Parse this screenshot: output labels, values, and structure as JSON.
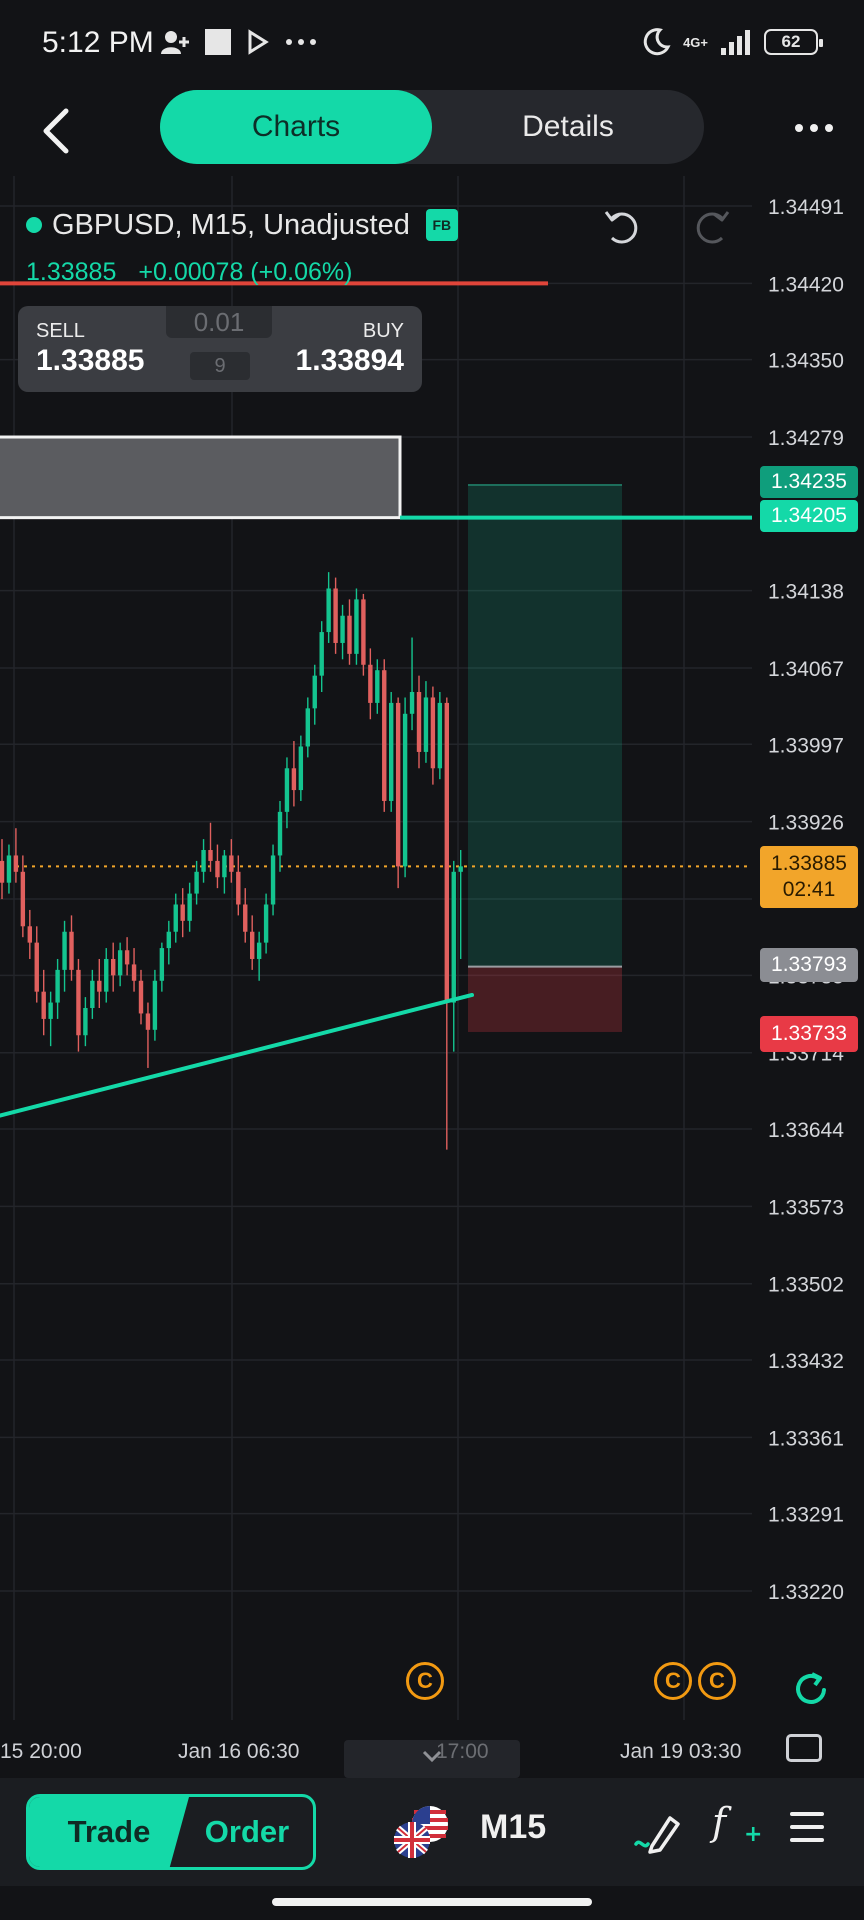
{
  "status_bar": {
    "time": "5:12 PM",
    "network": "4G+",
    "battery": "62"
  },
  "header": {
    "tabs": [
      "Charts",
      "Details"
    ],
    "active_tab": "Charts"
  },
  "chart_header": {
    "symbol": "GBPUSD, M15, Unadjusted",
    "badge": "FB",
    "last_price": "1.33885",
    "change": "+0.00078 (+0.06%)"
  },
  "trade_panel": {
    "sell_label": "SELL",
    "sell_price": "1.33885",
    "buy_label": "BUY",
    "buy_price": "1.33894",
    "lot": "0.01",
    "spread": "9"
  },
  "price_tags": {
    "take_profit": "1.34235",
    "line_level": "1.34205",
    "current_price": "1.33885",
    "countdown": "02:41",
    "entry": "1.33793",
    "stop_loss": "1.33733"
  },
  "coin_markers": [
    "C",
    "C",
    "C"
  ],
  "colors": {
    "accent": "#14d9a8",
    "up": "#14c48f",
    "down": "#e0605e",
    "current": "#f2a52a",
    "stop": "#e83a46"
  },
  "chart_data": {
    "type": "candlestick",
    "y_ticks": [
      "1.34491",
      "1.34420",
      "1.34350",
      "1.34279",
      "1.34205",
      "1.34138",
      "1.34067",
      "1.33997",
      "1.33926",
      "1.33855",
      "1.33785",
      "1.33714",
      "1.33644",
      "1.33573",
      "1.33502",
      "1.33432",
      "1.33361",
      "1.33291",
      "1.33220"
    ],
    "ylim": [
      1.3315,
      1.3453
    ],
    "x_labels": [
      "15 20:00",
      "Jan 16 06:30",
      "17:00",
      "Jan 19 03:30"
    ],
    "grid": true,
    "horizontal_lines": [
      {
        "price": 1.34205,
        "color": "#14d9a8"
      },
      {
        "price": 1.3442,
        "color": "#e0453a"
      },
      {
        "price": 1.33885,
        "color": "#f2a52a"
      }
    ],
    "position": {
      "entry": 1.33793,
      "take_profit": 1.34235,
      "stop_loss": 1.33733
    },
    "zone": {
      "top": 1.34279,
      "bottom": 1.34205
    },
    "trendline": [
      {
        "t": 0,
        "price": 1.3366
      },
      {
        "t": 78,
        "price": 1.338
      }
    ],
    "candles": [
      {
        "o": 1.3389,
        "h": 1.3391,
        "l": 1.33855,
        "c": 1.3387
      },
      {
        "o": 1.3387,
        "h": 1.33905,
        "l": 1.3386,
        "c": 1.33895
      },
      {
        "o": 1.33895,
        "h": 1.3392,
        "l": 1.3387,
        "c": 1.3388
      },
      {
        "o": 1.3388,
        "h": 1.33895,
        "l": 1.3382,
        "c": 1.3383
      },
      {
        "o": 1.3383,
        "h": 1.33845,
        "l": 1.338,
        "c": 1.33815
      },
      {
        "o": 1.33815,
        "h": 1.3383,
        "l": 1.3376,
        "c": 1.3377
      },
      {
        "o": 1.3377,
        "h": 1.3379,
        "l": 1.3373,
        "c": 1.33745
      },
      {
        "o": 1.33745,
        "h": 1.3377,
        "l": 1.3372,
        "c": 1.3376
      },
      {
        "o": 1.3376,
        "h": 1.338,
        "l": 1.33745,
        "c": 1.3379
      },
      {
        "o": 1.3379,
        "h": 1.33835,
        "l": 1.3377,
        "c": 1.33825
      },
      {
        "o": 1.33825,
        "h": 1.3384,
        "l": 1.3378,
        "c": 1.3379
      },
      {
        "o": 1.3379,
        "h": 1.338,
        "l": 1.33715,
        "c": 1.3373
      },
      {
        "o": 1.3373,
        "h": 1.33765,
        "l": 1.3372,
        "c": 1.33755
      },
      {
        "o": 1.33755,
        "h": 1.3379,
        "l": 1.33745,
        "c": 1.3378
      },
      {
        "o": 1.3378,
        "h": 1.338,
        "l": 1.33755,
        "c": 1.3377
      },
      {
        "o": 1.3377,
        "h": 1.3381,
        "l": 1.3376,
        "c": 1.338
      },
      {
        "o": 1.338,
        "h": 1.33815,
        "l": 1.3377,
        "c": 1.33785
      },
      {
        "o": 1.33785,
        "h": 1.33815,
        "l": 1.33775,
        "c": 1.33808
      },
      {
        "o": 1.33808,
        "h": 1.3382,
        "l": 1.33785,
        "c": 1.33795
      },
      {
        "o": 1.33795,
        "h": 1.3381,
        "l": 1.3377,
        "c": 1.3378
      },
      {
        "o": 1.3378,
        "h": 1.3379,
        "l": 1.3374,
        "c": 1.3375
      },
      {
        "o": 1.3375,
        "h": 1.3376,
        "l": 1.337,
        "c": 1.33735
      },
      {
        "o": 1.33735,
        "h": 1.3379,
        "l": 1.33725,
        "c": 1.3378
      },
      {
        "o": 1.3378,
        "h": 1.33815,
        "l": 1.3377,
        "c": 1.3381
      },
      {
        "o": 1.3381,
        "h": 1.33835,
        "l": 1.33795,
        "c": 1.33825
      },
      {
        "o": 1.33825,
        "h": 1.3386,
        "l": 1.33815,
        "c": 1.3385
      },
      {
        "o": 1.3385,
        "h": 1.33865,
        "l": 1.3382,
        "c": 1.33835
      },
      {
        "o": 1.33835,
        "h": 1.3387,
        "l": 1.33825,
        "c": 1.3386
      },
      {
        "o": 1.3386,
        "h": 1.3389,
        "l": 1.3385,
        "c": 1.3388
      },
      {
        "o": 1.3388,
        "h": 1.3391,
        "l": 1.3387,
        "c": 1.339
      },
      {
        "o": 1.339,
        "h": 1.33925,
        "l": 1.3388,
        "c": 1.3389
      },
      {
        "o": 1.3389,
        "h": 1.33905,
        "l": 1.33865,
        "c": 1.33875
      },
      {
        "o": 1.33875,
        "h": 1.339,
        "l": 1.3386,
        "c": 1.33895
      },
      {
        "o": 1.33895,
        "h": 1.3391,
        "l": 1.3387,
        "c": 1.3388
      },
      {
        "o": 1.3388,
        "h": 1.33895,
        "l": 1.3384,
        "c": 1.3385
      },
      {
        "o": 1.3385,
        "h": 1.33865,
        "l": 1.33815,
        "c": 1.33825
      },
      {
        "o": 1.33825,
        "h": 1.3384,
        "l": 1.3379,
        "c": 1.338
      },
      {
        "o": 1.338,
        "h": 1.33825,
        "l": 1.3378,
        "c": 1.33815
      },
      {
        "o": 1.33815,
        "h": 1.3386,
        "l": 1.33805,
        "c": 1.3385
      },
      {
        "o": 1.3385,
        "h": 1.33905,
        "l": 1.3384,
        "c": 1.33895
      },
      {
        "o": 1.33895,
        "h": 1.33945,
        "l": 1.3388,
        "c": 1.33935
      },
      {
        "o": 1.33935,
        "h": 1.33985,
        "l": 1.3392,
        "c": 1.33975
      },
      {
        "o": 1.33975,
        "h": 1.34,
        "l": 1.3394,
        "c": 1.33955
      },
      {
        "o": 1.33955,
        "h": 1.34005,
        "l": 1.33945,
        "c": 1.33995
      },
      {
        "o": 1.33995,
        "h": 1.3404,
        "l": 1.33985,
        "c": 1.3403
      },
      {
        "o": 1.3403,
        "h": 1.3407,
        "l": 1.34015,
        "c": 1.3406
      },
      {
        "o": 1.3406,
        "h": 1.3411,
        "l": 1.34045,
        "c": 1.341
      },
      {
        "o": 1.341,
        "h": 1.34155,
        "l": 1.3409,
        "c": 1.3414
      },
      {
        "o": 1.3414,
        "h": 1.3415,
        "l": 1.3408,
        "c": 1.3409
      },
      {
        "o": 1.3409,
        "h": 1.34125,
        "l": 1.34075,
        "c": 1.34115
      },
      {
        "o": 1.34115,
        "h": 1.3413,
        "l": 1.3407,
        "c": 1.3408
      },
      {
        "o": 1.3408,
        "h": 1.3414,
        "l": 1.3407,
        "c": 1.3413
      },
      {
        "o": 1.3413,
        "h": 1.34135,
        "l": 1.3406,
        "c": 1.3407
      },
      {
        "o": 1.3407,
        "h": 1.34085,
        "l": 1.3402,
        "c": 1.34035
      },
      {
        "o": 1.34035,
        "h": 1.34075,
        "l": 1.34025,
        "c": 1.34065
      },
      {
        "o": 1.34065,
        "h": 1.34075,
        "l": 1.33935,
        "c": 1.33945
      },
      {
        "o": 1.33945,
        "h": 1.34045,
        "l": 1.33935,
        "c": 1.34035
      },
      {
        "o": 1.34035,
        "h": 1.3404,
        "l": 1.33865,
        "c": 1.33885
      },
      {
        "o": 1.33885,
        "h": 1.3404,
        "l": 1.33875,
        "c": 1.34025
      },
      {
        "o": 1.34025,
        "h": 1.34095,
        "l": 1.3401,
        "c": 1.34045
      },
      {
        "o": 1.34045,
        "h": 1.3406,
        "l": 1.33975,
        "c": 1.3399
      },
      {
        "o": 1.3399,
        "h": 1.34055,
        "l": 1.3398,
        "c": 1.3404
      },
      {
        "o": 1.3404,
        "h": 1.3405,
        "l": 1.3396,
        "c": 1.33975
      },
      {
        "o": 1.33975,
        "h": 1.34045,
        "l": 1.33965,
        "c": 1.34035
      },
      {
        "o": 1.34035,
        "h": 1.3404,
        "l": 1.33625,
        "c": 1.3376
      },
      {
        "o": 1.3376,
        "h": 1.3389,
        "l": 1.33715,
        "c": 1.3388
      },
      {
        "o": 1.3388,
        "h": 1.339,
        "l": 1.338,
        "c": 1.33885
      }
    ]
  }
}
